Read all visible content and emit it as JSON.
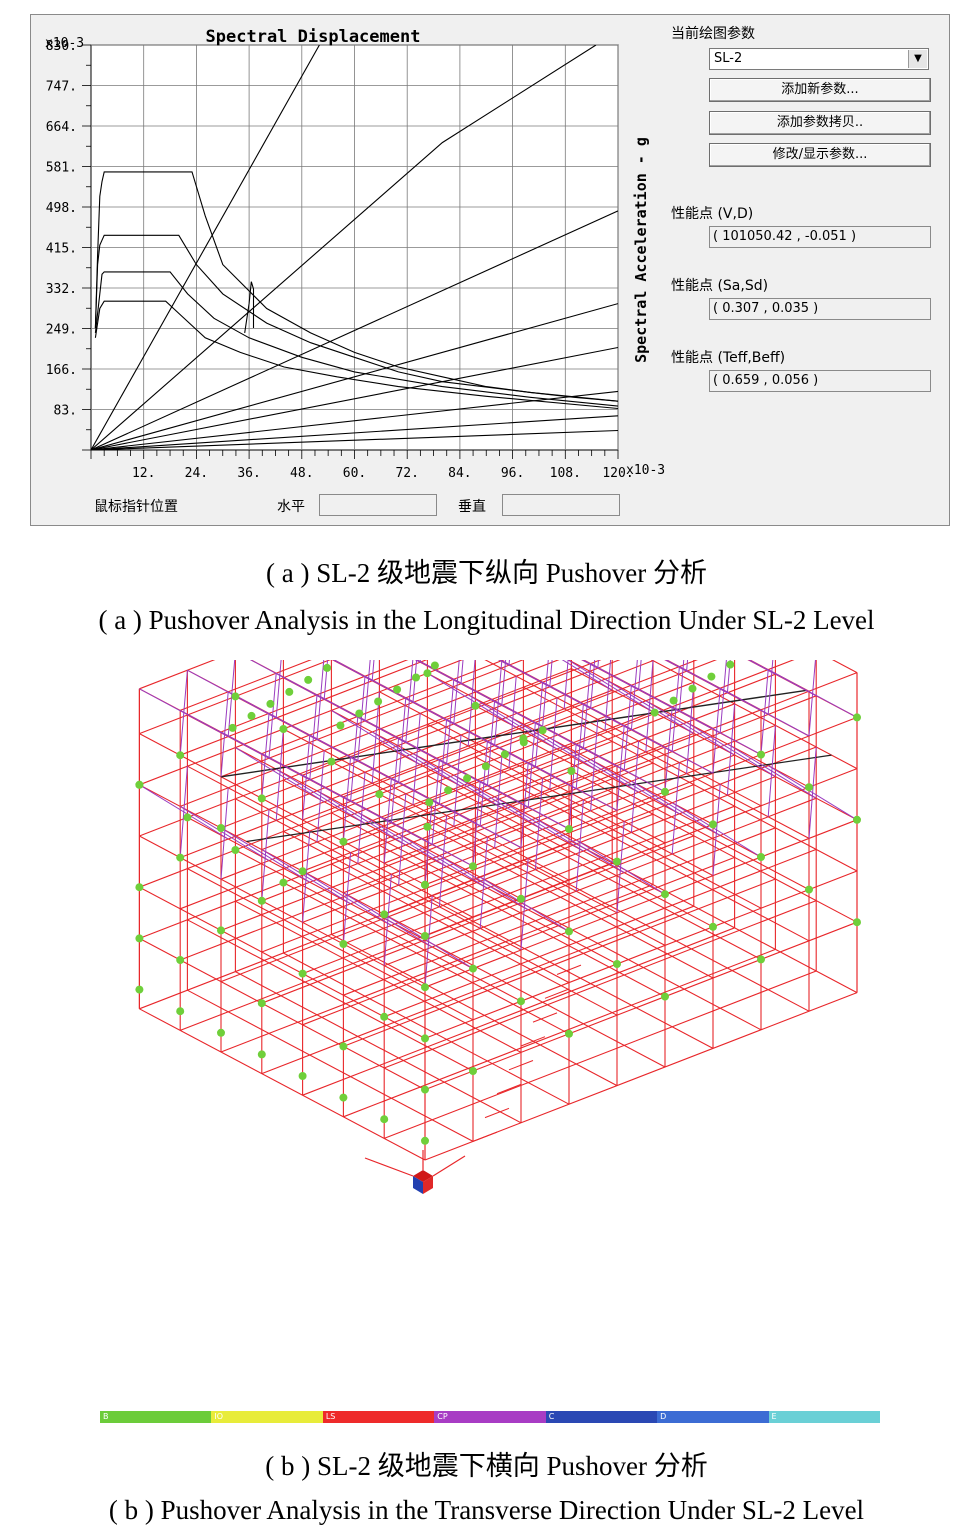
{
  "panel_a": {
    "chart_title": "Spectral Displacement",
    "y_label": "Spectral Acceleration - g",
    "y_multiplier": "x10-3",
    "x_multiplier": "x10-3",
    "y_ticks": [
      "830.",
      "747.",
      "664.",
      "581.",
      "498.",
      "415.",
      "332.",
      "249.",
      "166.",
      "83."
    ],
    "x_ticks": [
      "12.",
      "24.",
      "36.",
      "48.",
      "60.",
      "72.",
      "84.",
      "96.",
      "108.",
      "120."
    ],
    "status": {
      "mouse_label": "鼠标指针位置",
      "horizontal_label": "水平",
      "vertical_label": "垂直"
    },
    "controls": {
      "params_label": "当前绘图参数",
      "param_value": "SL-2",
      "add_new_button": "添加新参数...",
      "add_copy_button": "添加参数拷贝..",
      "modify_button": "修改/显示参数...",
      "perf_vd_label": "性能点 (V,D)",
      "perf_vd_value": "( 101050.42 , -0.051 )",
      "perf_sasd_label": "性能点 (Sa,Sd)",
      "perf_sasd_value": "( 0.307 , 0.035 )",
      "perf_teff_label": "性能点 (Teff,Beff)",
      "perf_teff_value": "( 0.659 , 0.056 )"
    }
  },
  "chart_data": {
    "type": "line",
    "title": "Spectral Displacement",
    "xlabel": "",
    "ylabel": "Spectral Acceleration - g",
    "xlim": [
      0,
      120
    ],
    "ylim": [
      0,
      830
    ],
    "grid": true,
    "series": [
      {
        "values": [
          [
            1,
            250
          ],
          [
            1.5,
            400
          ],
          [
            2,
            520
          ],
          [
            2.5,
            550
          ],
          [
            3,
            570
          ],
          [
            23,
            570
          ],
          [
            26,
            480
          ],
          [
            30,
            380
          ],
          [
            40,
            290
          ],
          [
            50,
            240
          ],
          [
            60,
            200
          ],
          [
            70,
            170
          ],
          [
            80,
            150
          ],
          [
            90,
            130
          ],
          [
            100,
            118
          ],
          [
            110,
            108
          ],
          [
            120,
            100
          ]
        ]
      },
      {
        "values": [
          [
            1,
            250
          ],
          [
            1.5,
            380
          ],
          [
            2,
            420
          ],
          [
            2.5,
            430
          ],
          [
            3,
            440
          ],
          [
            20,
            440
          ],
          [
            24,
            380
          ],
          [
            30,
            320
          ],
          [
            40,
            260
          ],
          [
            50,
            220
          ],
          [
            60,
            190
          ],
          [
            70,
            160
          ],
          [
            80,
            140
          ],
          [
            100,
            118
          ],
          [
            120,
            100
          ]
        ]
      },
      {
        "values": [
          [
            1,
            240
          ],
          [
            2,
            320
          ],
          [
            2.5,
            360
          ],
          [
            3,
            365
          ],
          [
            18,
            365
          ],
          [
            22,
            320
          ],
          [
            28,
            270
          ],
          [
            36,
            230
          ],
          [
            48,
            190
          ],
          [
            60,
            160
          ],
          [
            80,
            130
          ],
          [
            100,
            108
          ],
          [
            120,
            90
          ]
        ]
      },
      {
        "values": [
          [
            1,
            230
          ],
          [
            2,
            290
          ],
          [
            3,
            305
          ],
          [
            17,
            305
          ],
          [
            20,
            280
          ],
          [
            26,
            230
          ],
          [
            34,
            200
          ],
          [
            44,
            170
          ],
          [
            56,
            150
          ],
          [
            70,
            130
          ],
          [
            90,
            110
          ],
          [
            120,
            85
          ]
        ]
      },
      {
        "values": [
          [
            35,
            240
          ],
          [
            36,
            300
          ],
          [
            36.5,
            345
          ],
          [
            37,
            330
          ],
          [
            37,
            250
          ]
        ]
      },
      {
        "values": [
          [
            0,
            0
          ],
          [
            52,
            830
          ]
        ]
      },
      {
        "values": [
          [
            0,
            0
          ],
          [
            80,
            630
          ],
          [
            115,
            830
          ]
        ]
      },
      {
        "values": [
          [
            0,
            0
          ],
          [
            120,
            490
          ]
        ]
      },
      {
        "values": [
          [
            0,
            0
          ],
          [
            120,
            300
          ]
        ]
      },
      {
        "values": [
          [
            0,
            0
          ],
          [
            120,
            210
          ]
        ]
      },
      {
        "values": [
          [
            0,
            0
          ],
          [
            120,
            120
          ]
        ]
      },
      {
        "values": [
          [
            0,
            0
          ],
          [
            120,
            70
          ]
        ]
      },
      {
        "values": [
          [
            0,
            0
          ],
          [
            120,
            40
          ]
        ]
      }
    ]
  },
  "captions": {
    "a_cn": "( a ) SL-2 级地震下纵向 Pushover 分析",
    "a_en": "( a ) Pushover Analysis in the Longitudinal Direction Under SL-2 Level",
    "b_cn": "( b ) SL-2 级地震下横向 Pushover 分析",
    "b_en": "( b ) Pushover Analysis in the Transverse Direction Under SL-2 Level"
  },
  "legend": [
    {
      "label": "B",
      "color": "#6ccc3a"
    },
    {
      "label": "IO",
      "color": "#e8ec3a"
    },
    {
      "label": "LS",
      "color": "#ee2a2a"
    },
    {
      "label": "CP",
      "color": "#a83cc4"
    },
    {
      "label": "C",
      "color": "#2a48b4"
    },
    {
      "label": "D",
      "color": "#3c6cd4"
    },
    {
      "label": "E",
      "color": "#6ad0d6"
    }
  ],
  "colors": {
    "frame_red": "#e8262a",
    "truss_purple": "#9a3cc0",
    "hinge_green": "#6fcf3a"
  }
}
